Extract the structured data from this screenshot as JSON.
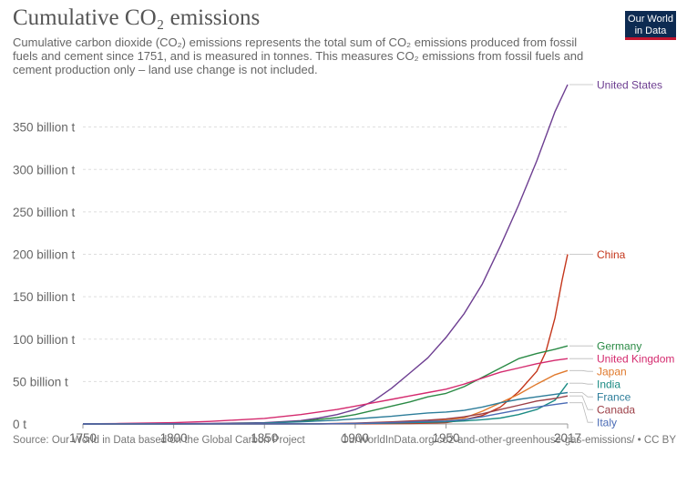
{
  "header": {
    "title": "Cumulative CO₂ emissions",
    "subtitle": "Cumulative carbon dioxide (CO₂) emissions represents the total sum of CO₂ emissions produced from fossil fuels and cement since 1751, and is measured in tonnes. This measures CO₂ emissions from fossil fuels and cement production only – land use change is not included."
  },
  "logo": {
    "line1": "Our World",
    "line2": "in Data",
    "bg": "#0d2b52",
    "accent": "#c0142d"
  },
  "footer": {
    "source": "Source: Our World in Data based on the Global Carbon Project",
    "url": "OurWorldInData.org/co2-and-other-greenhouse-gas-emissions/ • CC BY"
  },
  "chart_data": {
    "type": "line",
    "xlim": [
      1750,
      2017
    ],
    "ylim": [
      0,
      400
    ],
    "ytick_values": [
      0,
      50,
      100,
      150,
      200,
      250,
      300,
      350
    ],
    "ytick_labels": [
      "0 t",
      "50 billion t",
      "100 billion t",
      "150 billion t",
      "200 billion t",
      "250 billion t",
      "300 billion t",
      "350 billion t"
    ],
    "xtick_values": [
      1750,
      1800,
      1850,
      1900,
      1950,
      2017
    ],
    "xtick_labels": [
      "1750",
      "1800",
      "1850",
      "1900",
      "1950",
      "2017"
    ],
    "grid": "horizontal-dashed",
    "legend": "right-end-labels",
    "series": [
      {
        "name": "United States",
        "color": "#6d3e91",
        "points": [
          [
            1750,
            0
          ],
          [
            1790,
            0.2
          ],
          [
            1820,
            0.6
          ],
          [
            1850,
            1.5
          ],
          [
            1870,
            4
          ],
          [
            1880,
            7
          ],
          [
            1890,
            11
          ],
          [
            1900,
            17
          ],
          [
            1910,
            27
          ],
          [
            1920,
            42
          ],
          [
            1930,
            60
          ],
          [
            1940,
            78
          ],
          [
            1950,
            102
          ],
          [
            1960,
            130
          ],
          [
            1970,
            165
          ],
          [
            1980,
            210
          ],
          [
            1990,
            258
          ],
          [
            2000,
            310
          ],
          [
            2010,
            368
          ],
          [
            2017,
            400
          ]
        ]
      },
      {
        "name": "China",
        "color": "#c4361b",
        "points": [
          [
            1750,
            0
          ],
          [
            1900,
            0.1
          ],
          [
            1930,
            0.5
          ],
          [
            1950,
            1.5
          ],
          [
            1960,
            5
          ],
          [
            1970,
            10
          ],
          [
            1980,
            20
          ],
          [
            1990,
            38
          ],
          [
            2000,
            62
          ],
          [
            2005,
            85
          ],
          [
            2010,
            125
          ],
          [
            2014,
            170
          ],
          [
            2017,
            200
          ]
        ]
      },
      {
        "name": "Germany",
        "color": "#2a8a45",
        "points": [
          [
            1750,
            0
          ],
          [
            1800,
            0.1
          ],
          [
            1830,
            0.4
          ],
          [
            1850,
            1
          ],
          [
            1870,
            3
          ],
          [
            1890,
            7.5
          ],
          [
            1900,
            11
          ],
          [
            1910,
            16
          ],
          [
            1920,
            21
          ],
          [
            1930,
            26
          ],
          [
            1940,
            32
          ],
          [
            1950,
            36
          ],
          [
            1960,
            44
          ],
          [
            1970,
            55
          ],
          [
            1980,
            66
          ],
          [
            1990,
            77
          ],
          [
            2000,
            83
          ],
          [
            2010,
            88
          ],
          [
            2017,
            92
          ]
        ]
      },
      {
        "name": "United Kingdom",
        "color": "#d42a6e",
        "points": [
          [
            1750,
            0.2
          ],
          [
            1770,
            0.5
          ],
          [
            1800,
            1.5
          ],
          [
            1820,
            3
          ],
          [
            1850,
            6.5
          ],
          [
            1870,
            11
          ],
          [
            1890,
            17
          ],
          [
            1900,
            21
          ],
          [
            1910,
            25
          ],
          [
            1920,
            29
          ],
          [
            1930,
            33
          ],
          [
            1940,
            37
          ],
          [
            1950,
            41
          ],
          [
            1960,
            47
          ],
          [
            1970,
            54
          ],
          [
            1980,
            61
          ],
          [
            1990,
            66
          ],
          [
            2000,
            71
          ],
          [
            2010,
            75
          ],
          [
            2017,
            77
          ]
        ]
      },
      {
        "name": "Japan",
        "color": "#e0792c",
        "points": [
          [
            1750,
            0
          ],
          [
            1880,
            0.1
          ],
          [
            1900,
            0.5
          ],
          [
            1920,
            1.5
          ],
          [
            1940,
            4
          ],
          [
            1950,
            5
          ],
          [
            1960,
            7
          ],
          [
            1970,
            15
          ],
          [
            1980,
            25
          ],
          [
            1990,
            35
          ],
          [
            2000,
            47
          ],
          [
            2010,
            58
          ],
          [
            2017,
            63
          ]
        ]
      },
      {
        "name": "India",
        "color": "#1b8b84",
        "points": [
          [
            1750,
            0
          ],
          [
            1880,
            0.1
          ],
          [
            1900,
            0.4
          ],
          [
            1920,
            1
          ],
          [
            1950,
            2.5
          ],
          [
            1960,
            3.5
          ],
          [
            1970,
            5
          ],
          [
            1980,
            7
          ],
          [
            1990,
            11
          ],
          [
            2000,
            17
          ],
          [
            2010,
            28
          ],
          [
            2017,
            48
          ]
        ]
      },
      {
        "name": "France",
        "color": "#2d7d9a",
        "points": [
          [
            1750,
            0
          ],
          [
            1800,
            0.1
          ],
          [
            1830,
            0.3
          ],
          [
            1850,
            1
          ],
          [
            1870,
            2.5
          ],
          [
            1890,
            4.5
          ],
          [
            1900,
            6
          ],
          [
            1910,
            7.5
          ],
          [
            1920,
            9
          ],
          [
            1930,
            11
          ],
          [
            1940,
            13
          ],
          [
            1950,
            14
          ],
          [
            1960,
            16
          ],
          [
            1970,
            20
          ],
          [
            1980,
            25
          ],
          [
            1990,
            29
          ],
          [
            2000,
            32
          ],
          [
            2010,
            35
          ],
          [
            2017,
            37
          ]
        ]
      },
      {
        "name": "Canada",
        "color": "#9c3e46",
        "points": [
          [
            1750,
            0
          ],
          [
            1880,
            0.2
          ],
          [
            1900,
            1
          ],
          [
            1920,
            2.5
          ],
          [
            1940,
            4.5
          ],
          [
            1950,
            6
          ],
          [
            1960,
            8.5
          ],
          [
            1970,
            12
          ],
          [
            1980,
            17
          ],
          [
            1990,
            22
          ],
          [
            2000,
            27
          ],
          [
            2010,
            30
          ],
          [
            2017,
            33
          ]
        ]
      },
      {
        "name": "Italy",
        "color": "#4a6bb5",
        "points": [
          [
            1750,
            0
          ],
          [
            1880,
            0.1
          ],
          [
            1900,
            0.5
          ],
          [
            1920,
            1.5
          ],
          [
            1940,
            3
          ],
          [
            1950,
            3.5
          ],
          [
            1960,
            5
          ],
          [
            1970,
            8.5
          ],
          [
            1980,
            12.5
          ],
          [
            1990,
            16.5
          ],
          [
            2000,
            20
          ],
          [
            2010,
            23
          ],
          [
            2017,
            25
          ]
        ]
      }
    ]
  }
}
